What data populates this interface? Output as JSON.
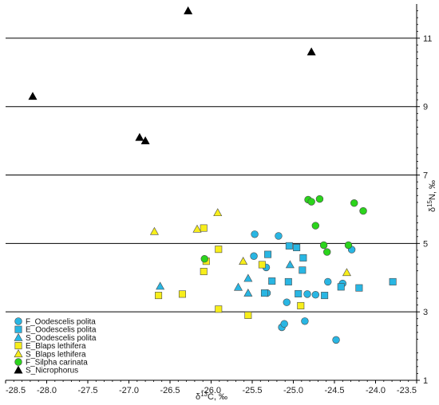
{
  "chart_data": {
    "type": "scatter",
    "xlabel": "δ13C, ‰",
    "xlabel_parts": {
      "pre": "δ",
      "sup": "13",
      "post": "C, ‰"
    },
    "ylabel": "δ15N, ‰",
    "ylabel_parts": {
      "pre": "δ",
      "sup": "15",
      "post": "N, ‰"
    },
    "xlim": [
      -28.5,
      -23.5
    ],
    "ylim": [
      1,
      12
    ],
    "xticks": [
      -28.5,
      -28.0,
      -27.5,
      -27.0,
      -26.5,
      -26.0,
      -25.5,
      -25.0,
      -24.5,
      -24.0,
      -23.5
    ],
    "xtick_labels": [
      "-28.5",
      "-28.0",
      "-27.5",
      "-27.0",
      "-26.5",
      "-26.0",
      "-25.5",
      "-25.0",
      "-24.5",
      "-24.0",
      "-23.5"
    ],
    "yticks": [
      1,
      3,
      5,
      7,
      9,
      11
    ],
    "ytick_labels": [
      "1",
      "3",
      "5",
      "7",
      "9",
      "11"
    ],
    "grid": "horizontal lines at major y ticks",
    "y_axis_side": "right",
    "legend_position": "bottom-left",
    "series": [
      {
        "name": "F_Oodescelis polita",
        "marker": "circle",
        "color": "#29b6e3",
        "points": [
          [
            -25.47,
            5.27
          ],
          [
            -25.18,
            5.22
          ],
          [
            -25.48,
            4.63
          ],
          [
            -25.33,
            4.3
          ],
          [
            -25.32,
            3.55
          ],
          [
            -25.08,
            3.28
          ],
          [
            -24.83,
            3.52
          ],
          [
            -24.73,
            3.5
          ],
          [
            -24.58,
            3.88
          ],
          [
            -24.4,
            3.83
          ],
          [
            -24.29,
            4.82
          ],
          [
            -25.14,
            2.55
          ],
          [
            -25.11,
            2.65
          ],
          [
            -24.86,
            2.73
          ],
          [
            -24.48,
            2.18
          ]
        ]
      },
      {
        "name": "E_Oodescelis polita",
        "marker": "square",
        "color": "#29b6e3",
        "points": [
          [
            -25.31,
            4.68
          ],
          [
            -25.05,
            4.93
          ],
          [
            -24.96,
            4.88
          ],
          [
            -24.88,
            4.58
          ],
          [
            -24.89,
            4.22
          ],
          [
            -25.26,
            3.9
          ],
          [
            -25.06,
            3.88
          ],
          [
            -25.35,
            3.55
          ],
          [
            -24.94,
            3.53
          ],
          [
            -24.42,
            3.73
          ],
          [
            -24.62,
            3.48
          ],
          [
            -24.2,
            3.7
          ],
          [
            -23.79,
            3.88
          ]
        ]
      },
      {
        "name": "S_Oodescelis polita",
        "marker": "triangle",
        "color": "#29b6e3",
        "points": [
          [
            -26.62,
            3.75
          ],
          [
            -25.67,
            3.72
          ],
          [
            -25.55,
            3.98
          ],
          [
            -25.55,
            3.55
          ],
          [
            -25.04,
            4.38
          ]
        ]
      },
      {
        "name": "E_Blaps lethifera",
        "marker": "square",
        "color": "#f7ee1b",
        "points": [
          [
            -26.09,
            5.45
          ],
          [
            -26.06,
            4.48
          ],
          [
            -26.09,
            4.18
          ],
          [
            -25.91,
            4.83
          ],
          [
            -25.38,
            4.38
          ],
          [
            -26.64,
            3.48
          ],
          [
            -26.35,
            3.52
          ],
          [
            -25.91,
            3.08
          ],
          [
            -25.55,
            2.9
          ],
          [
            -24.91,
            3.18
          ]
        ]
      },
      {
        "name": "S_Blaps lethifera",
        "marker": "triangle",
        "color": "#f7ee1b",
        "points": [
          [
            -26.69,
            5.35
          ],
          [
            -26.17,
            5.42
          ],
          [
            -25.92,
            5.9
          ],
          [
            -25.61,
            4.48
          ],
          [
            -24.35,
            4.15
          ]
        ]
      },
      {
        "name": "F_Silpha carinata",
        "marker": "circle",
        "color": "#2bd41c",
        "points": [
          [
            -24.82,
            6.28
          ],
          [
            -24.78,
            6.22
          ],
          [
            -24.68,
            6.3
          ],
          [
            -24.26,
            6.18
          ],
          [
            -24.15,
            5.95
          ],
          [
            -24.73,
            5.52
          ],
          [
            -24.63,
            4.95
          ],
          [
            -24.59,
            4.75
          ],
          [
            -24.33,
            4.95
          ],
          [
            -26.08,
            4.55
          ]
        ]
      },
      {
        "name": "S_Nicrophorus",
        "marker": "triangle",
        "color": "#000000",
        "points": [
          [
            -26.28,
            11.8
          ],
          [
            -24.78,
            10.6
          ],
          [
            -28.17,
            9.3
          ],
          [
            -26.87,
            8.1
          ],
          [
            -26.8,
            8.0
          ]
        ]
      }
    ]
  }
}
